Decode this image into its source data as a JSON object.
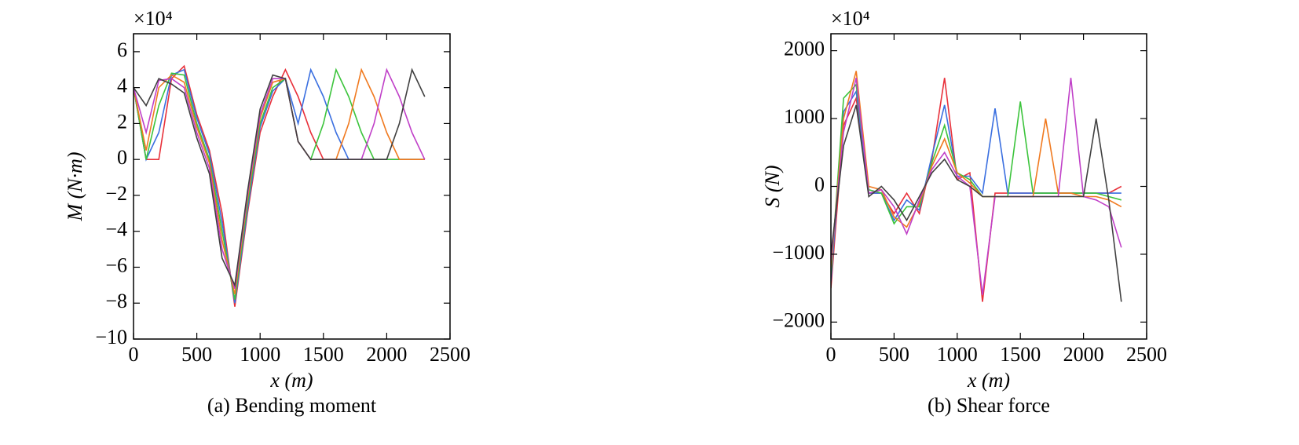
{
  "chart_data": [
    {
      "type": "line",
      "title": "(a) Bending moment",
      "x_label": "x (m)",
      "y_label": "M (N·m)",
      "y_multiplier": "×10⁴",
      "x": [
        0,
        100,
        200,
        300,
        400,
        500,
        600,
        700,
        800,
        900,
        1000,
        1100,
        1200,
        1300,
        1400,
        1500,
        1600,
        1700,
        1800,
        1900,
        2000,
        2100,
        2200,
        2300
      ],
      "xlim": [
        0,
        2500
      ],
      "xticks": [
        0,
        500,
        1000,
        1500,
        2000,
        2500
      ],
      "ylim": [
        -10,
        7
      ],
      "yticks": [
        -10,
        -8,
        -6,
        -4,
        -2,
        0,
        2,
        4,
        6
      ],
      "series": [
        {
          "color": "#e8303a",
          "values": [
            4,
            0,
            0,
            4.5,
            5.2,
            2.5,
            0.5,
            -3,
            -8.2,
            -3,
            1.5,
            3.5,
            5,
            3.5,
            1.5,
            0,
            0,
            0,
            0,
            0,
            0,
            0,
            0,
            0
          ]
        },
        {
          "color": "#3a6fe0",
          "values": [
            4,
            0,
            1.5,
            4.7,
            5,
            2.3,
            0.3,
            -3.5,
            -8,
            -2.8,
            1.8,
            3.8,
            4.5,
            2,
            5,
            3.5,
            1.5,
            0,
            0,
            0,
            0,
            0,
            0,
            0
          ]
        },
        {
          "color": "#3cc43c",
          "values": [
            4,
            0,
            3,
            4.8,
            4.7,
            2,
            0,
            -4,
            -7.8,
            -2.5,
            2,
            4,
            4.5,
            1,
            0,
            2,
            5,
            3.5,
            1.5,
            0,
            0,
            0,
            0,
            0
          ]
        },
        {
          "color": "#f07a20",
          "values": [
            4,
            0.5,
            4,
            4.7,
            4.3,
            1.8,
            -0.2,
            -4.5,
            -7.5,
            -2.2,
            2.3,
            4.3,
            4.5,
            1,
            0,
            0,
            0,
            2,
            5,
            3.5,
            1.5,
            0,
            0,
            0
          ]
        },
        {
          "color": "#c040c8",
          "values": [
            4,
            1.5,
            4.4,
            4.5,
            4,
            1.5,
            -0.5,
            -5,
            -7.2,
            -2,
            2.5,
            4.5,
            4.5,
            1,
            0,
            0,
            0,
            0,
            0,
            2,
            5,
            3.5,
            1.5,
            0
          ]
        },
        {
          "color": "#404040",
          "values": [
            4,
            3,
            4.5,
            4.2,
            3.7,
            1.2,
            -0.8,
            -5.5,
            -7,
            -1.8,
            2.8,
            4.7,
            4.5,
            1,
            0,
            0,
            0,
            0,
            0,
            0,
            0,
            2,
            5,
            3.5
          ]
        }
      ]
    },
    {
      "type": "line",
      "title": "(b) Shear force",
      "x_label": "x (m)",
      "y_label": "S (N)",
      "y_multiplier": "×10⁴",
      "x": [
        0,
        100,
        200,
        300,
        400,
        500,
        600,
        700,
        800,
        900,
        1000,
        1100,
        1200,
        1300,
        1400,
        1500,
        1600,
        1700,
        1800,
        1900,
        2000,
        2100,
        2200,
        2300
      ],
      "xlim": [
        0,
        2500
      ],
      "xticks": [
        0,
        500,
        1000,
        1500,
        2000,
        2500
      ],
      "ylim": [
        -2250,
        2250
      ],
      "yticks": [
        -2000,
        -1000,
        0,
        1000,
        2000
      ],
      "series": [
        {
          "color": "#e8303a",
          "values": [
            -1500,
            900,
            1300,
            -100,
            -100,
            -400,
            -100,
            -400,
            400,
            1600,
            100,
            200,
            -1700,
            -100,
            -100,
            -100,
            -100,
            -100,
            -100,
            -100,
            -100,
            -100,
            -100,
            0
          ]
        },
        {
          "color": "#3a6fe0",
          "values": [
            -1400,
            1100,
            1400,
            -100,
            -100,
            -500,
            -200,
            -350,
            450,
            1200,
            150,
            150,
            -100,
            1150,
            -100,
            -100,
            -100,
            -100,
            -100,
            -100,
            -100,
            -100,
            -100,
            -100
          ]
        },
        {
          "color": "#3cc43c",
          "values": [
            -1300,
            1300,
            1500,
            -50,
            -100,
            -550,
            -300,
            -300,
            350,
            900,
            200,
            100,
            -150,
            -150,
            -150,
            1250,
            -100,
            -100,
            -100,
            -100,
            -100,
            -100,
            -150,
            -200
          ]
        },
        {
          "color": "#f07a20",
          "values": [
            -1200,
            1000,
            1700,
            0,
            -50,
            -450,
            -600,
            -250,
            300,
            700,
            200,
            50,
            -150,
            -150,
            -150,
            -150,
            -150,
            1000,
            -100,
            -100,
            -150,
            -150,
            -200,
            -300
          ]
        },
        {
          "color": "#c040c8",
          "values": [
            -1100,
            800,
            1600,
            -100,
            -50,
            -300,
            -700,
            -200,
            250,
            500,
            150,
            0,
            -1600,
            -150,
            -150,
            -150,
            -150,
            -150,
            -150,
            1600,
            -150,
            -200,
            -300,
            -900
          ]
        },
        {
          "color": "#404040",
          "values": [
            -1000,
            600,
            1200,
            -150,
            0,
            -200,
            -500,
            -150,
            200,
            400,
            100,
            0,
            -150,
            -150,
            -150,
            -150,
            -150,
            -150,
            -150,
            -150,
            -150,
            1000,
            -200,
            -1700
          ]
        }
      ]
    }
  ]
}
